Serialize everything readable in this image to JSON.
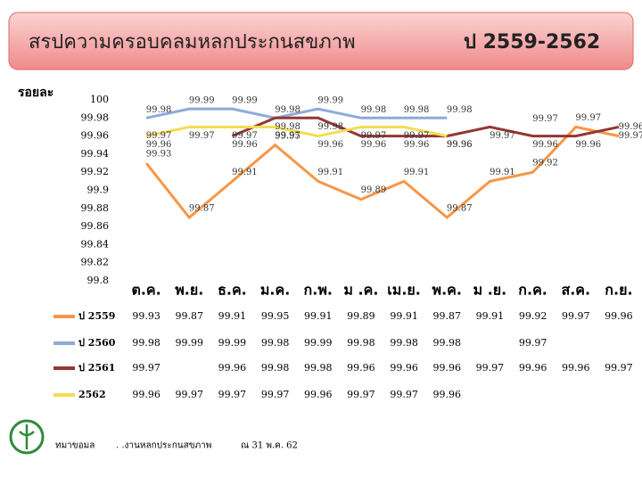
{
  "chart_data": {
    "type": "line",
    "title": "สรปความครอบคลมหลกประกนสขภาพ",
    "subtitle": "ป  2559-2562",
    "y_label": "รอยละ",
    "categories": [
      "ต.ค.",
      "พ.ย.",
      "ธ.ค.",
      "ม.ค.",
      "ก.พ.",
      "ม .ค.",
      "เม.ย.",
      "พ.ค.",
      "ม .ย.",
      "ก.ค.",
      "ส.ค.",
      "ก.ย."
    ],
    "series": [
      {
        "name": "ป 2559",
        "color": "#f79646",
        "values": [
          99.93,
          99.87,
          99.91,
          99.95,
          99.91,
          99.89,
          99.91,
          99.87,
          99.91,
          99.92,
          99.97,
          99.96
        ]
      },
      {
        "name": "ป 2560",
        "color": "#8eaadb",
        "values": [
          99.98,
          99.99,
          99.99,
          99.98,
          99.99,
          99.98,
          99.98,
          99.98,
          null,
          99.97,
          null,
          null
        ]
      },
      {
        "name": "ป 2561",
        "color": "#943634",
        "values": [
          99.97,
          null,
          99.96,
          99.98,
          99.98,
          99.96,
          99.96,
          99.96,
          99.97,
          99.96,
          99.96,
          99.97
        ]
      },
      {
        "name": "2562",
        "color": "#f5dc50",
        "values": [
          99.96,
          99.97,
          99.97,
          99.97,
          99.96,
          99.97,
          99.97,
          99.96,
          null,
          null,
          null,
          null
        ]
      }
    ],
    "ylim": [
      99.8,
      100
    ],
    "yticks": [
      99.8,
      99.82,
      99.84,
      99.86,
      99.88,
      99.9,
      99.92,
      99.94,
      99.96,
      99.98,
      100
    ],
    "footer": [
      "ทมาขอมล",
      ". .งานหลกประกนสขภาพ",
      "ณ 31 พ.ค. 62"
    ]
  }
}
